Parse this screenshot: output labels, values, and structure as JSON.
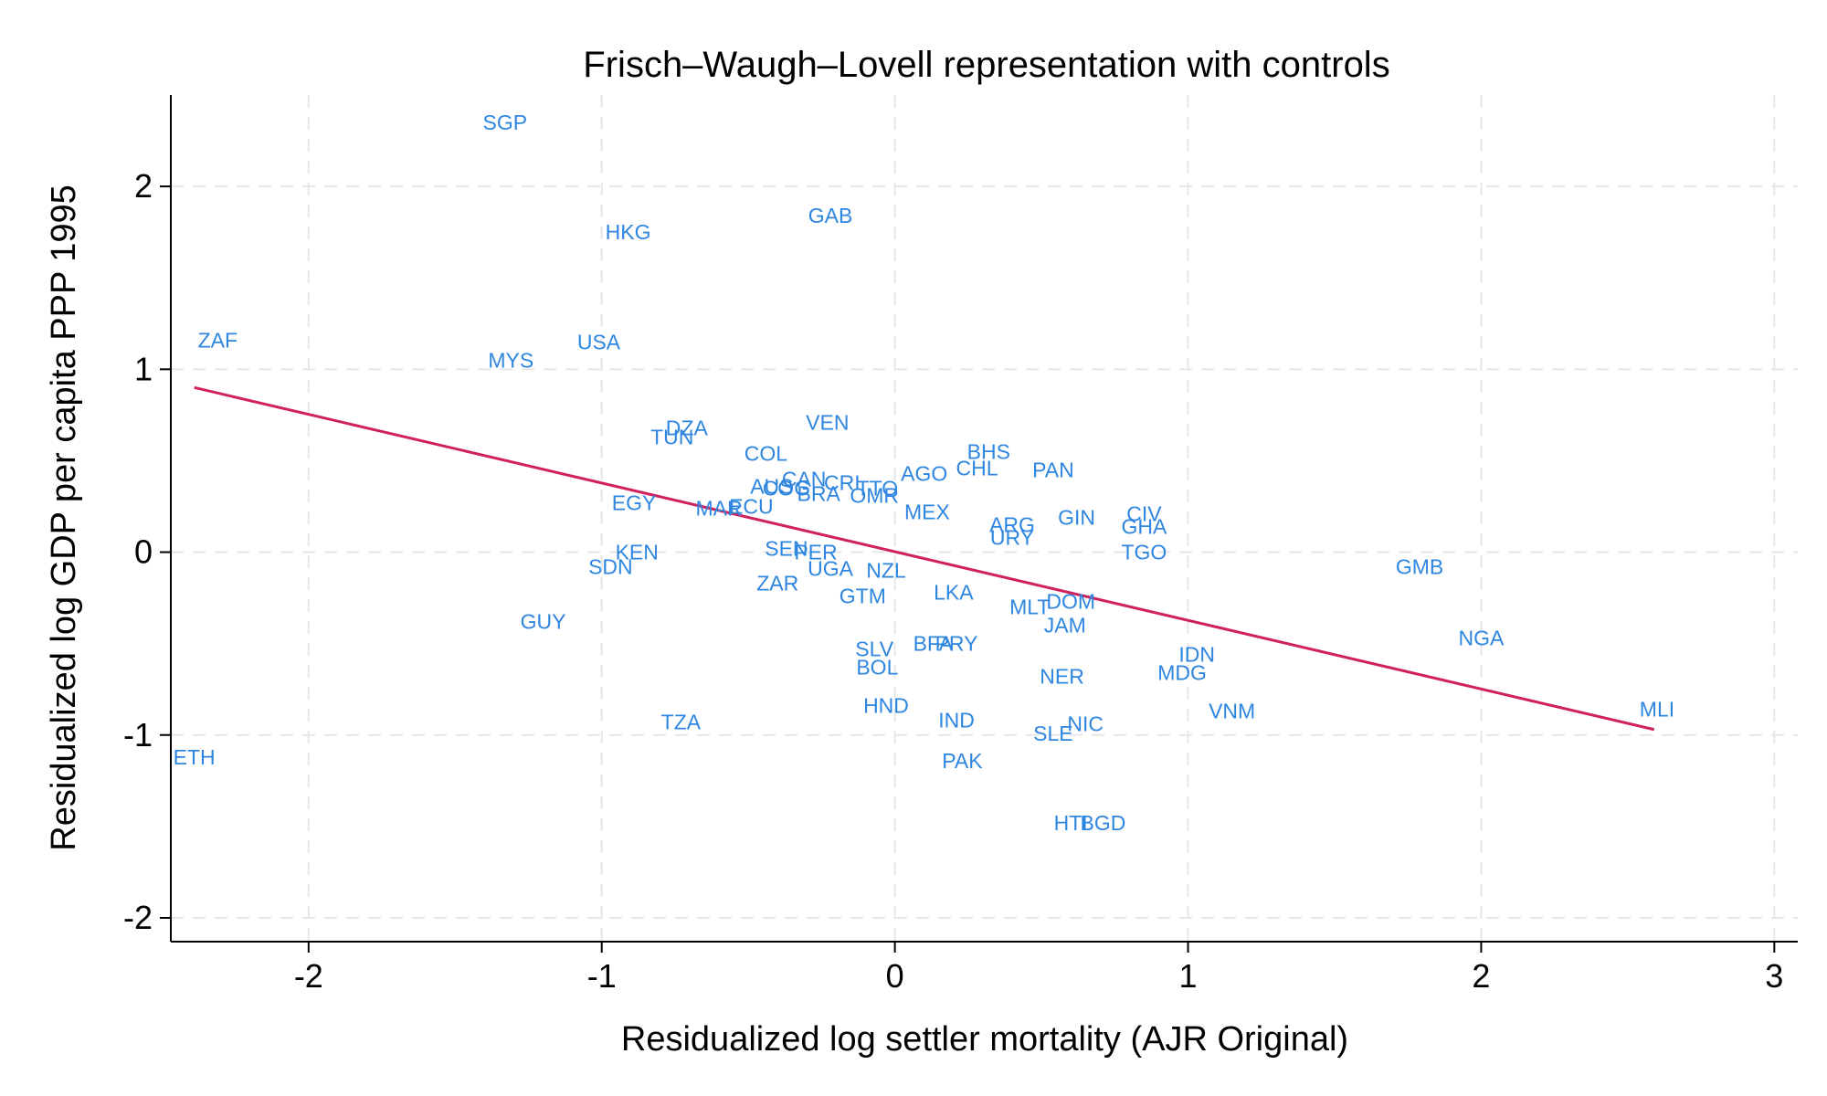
{
  "chart_data": {
    "type": "scatter",
    "title": "Frisch–Waugh–Lovell representation with controls",
    "xlabel": "Residualized log settler mortality (AJR Original)",
    "ylabel": "Residualized log GDP per capita PPP 1995",
    "xlim": [
      -2.47,
      3.08
    ],
    "ylim": [
      -2.13,
      2.5
    ],
    "xticks": [
      -2,
      -1,
      0,
      1,
      2,
      3
    ],
    "yticks": [
      -2,
      -1,
      0,
      1,
      2
    ],
    "xtick_labels": [
      "-2",
      "-1",
      "0",
      "1",
      "2",
      "3"
    ],
    "ytick_labels": [
      "-2",
      "-1",
      "0",
      "1",
      "2"
    ],
    "grid": true,
    "marker": "label",
    "label_color": "#2e86e0",
    "line_color": "#d0215e",
    "points": [
      {
        "label": "SGP",
        "x": -1.33,
        "y": 2.35
      },
      {
        "label": "GAB",
        "x": -0.22,
        "y": 1.84
      },
      {
        "label": "HKG",
        "x": -0.91,
        "y": 1.75
      },
      {
        "label": "ZAF",
        "x": -2.31,
        "y": 1.16
      },
      {
        "label": "USA",
        "x": -1.01,
        "y": 1.15
      },
      {
        "label": "MYS",
        "x": -1.31,
        "y": 1.05
      },
      {
        "label": "DZA",
        "x": -0.71,
        "y": 0.68
      },
      {
        "label": "TUN",
        "x": -0.76,
        "y": 0.63
      },
      {
        "label": "VEN",
        "x": -0.23,
        "y": 0.71
      },
      {
        "label": "COL",
        "x": -0.44,
        "y": 0.54
      },
      {
        "label": "BHS",
        "x": 0.32,
        "y": 0.55
      },
      {
        "label": "CHL",
        "x": 0.28,
        "y": 0.46
      },
      {
        "label": "PAN",
        "x": 0.54,
        "y": 0.45
      },
      {
        "label": "AGO",
        "x": 0.1,
        "y": 0.43
      },
      {
        "label": "CAN",
        "x": -0.31,
        "y": 0.4
      },
      {
        "label": "AUS",
        "x": -0.42,
        "y": 0.36
      },
      {
        "label": "COG",
        "x": -0.37,
        "y": 0.35
      },
      {
        "label": "CRI",
        "x": -0.18,
        "y": 0.38
      },
      {
        "label": "TTO",
        "x": -0.06,
        "y": 0.35
      },
      {
        "label": "BRA",
        "x": -0.26,
        "y": 0.32
      },
      {
        "label": "OMR",
        "x": -0.07,
        "y": 0.31
      },
      {
        "label": "EGY",
        "x": -0.89,
        "y": 0.27
      },
      {
        "label": "MAR",
        "x": -0.6,
        "y": 0.24
      },
      {
        "label": "ECU",
        "x": -0.49,
        "y": 0.25
      },
      {
        "label": "MEX",
        "x": 0.11,
        "y": 0.22
      },
      {
        "label": "ARG",
        "x": 0.4,
        "y": 0.15
      },
      {
        "label": "GIN",
        "x": 0.62,
        "y": 0.19
      },
      {
        "label": "CIV",
        "x": 0.85,
        "y": 0.21
      },
      {
        "label": "GHA",
        "x": 0.85,
        "y": 0.14
      },
      {
        "label": "URY",
        "x": 0.4,
        "y": 0.08
      },
      {
        "label": "SEN",
        "x": -0.37,
        "y": 0.02
      },
      {
        "label": "PER",
        "x": -0.27,
        "y": 0.0
      },
      {
        "label": "KEN",
        "x": -0.88,
        "y": 0.0
      },
      {
        "label": "TGO",
        "x": 0.85,
        "y": 0.0
      },
      {
        "label": "SDN",
        "x": -0.97,
        "y": -0.08
      },
      {
        "label": "UGA",
        "x": -0.22,
        "y": -0.09
      },
      {
        "label": "NZL",
        "x": -0.03,
        "y": -0.1
      },
      {
        "label": "GMB",
        "x": 1.79,
        "y": -0.08
      },
      {
        "label": "ZAR",
        "x": -0.4,
        "y": -0.17
      },
      {
        "label": "GTM",
        "x": -0.11,
        "y": -0.24
      },
      {
        "label": "LKA",
        "x": 0.2,
        "y": -0.22
      },
      {
        "label": "DOM",
        "x": 0.6,
        "y": -0.27
      },
      {
        "label": "MLT",
        "x": 0.46,
        "y": -0.3
      },
      {
        "label": "JAM",
        "x": 0.58,
        "y": -0.4
      },
      {
        "label": "GUY",
        "x": -1.2,
        "y": -0.38
      },
      {
        "label": "NGA",
        "x": 2.0,
        "y": -0.47
      },
      {
        "label": "BFA",
        "x": 0.13,
        "y": -0.5
      },
      {
        "label": "PRY",
        "x": 0.21,
        "y": -0.5
      },
      {
        "label": "SLV",
        "x": -0.07,
        "y": -0.53
      },
      {
        "label": "IDN",
        "x": 1.03,
        "y": -0.56
      },
      {
        "label": "BOL",
        "x": -0.06,
        "y": -0.63
      },
      {
        "label": "MDG",
        "x": 0.98,
        "y": -0.66
      },
      {
        "label": "NER",
        "x": 0.57,
        "y": -0.68
      },
      {
        "label": "HND",
        "x": -0.03,
        "y": -0.84
      },
      {
        "label": "VNM",
        "x": 1.15,
        "y": -0.87
      },
      {
        "label": "MLI",
        "x": 2.6,
        "y": -0.86
      },
      {
        "label": "TZA",
        "x": -0.73,
        "y": -0.93
      },
      {
        "label": "IND",
        "x": 0.21,
        "y": -0.92
      },
      {
        "label": "NIC",
        "x": 0.65,
        "y": -0.94
      },
      {
        "label": "SLE",
        "x": 0.54,
        "y": -0.99
      },
      {
        "label": "ETH",
        "x": -2.39,
        "y": -1.12
      },
      {
        "label": "PAK",
        "x": 0.23,
        "y": -1.14
      },
      {
        "label": "HTI",
        "x": 0.6,
        "y": -1.48
      },
      {
        "label": "BGD",
        "x": 0.71,
        "y": -1.48
      }
    ],
    "fit_line": {
      "x": [
        -2.39,
        2.59
      ],
      "y": [
        0.9,
        -0.97
      ]
    }
  }
}
